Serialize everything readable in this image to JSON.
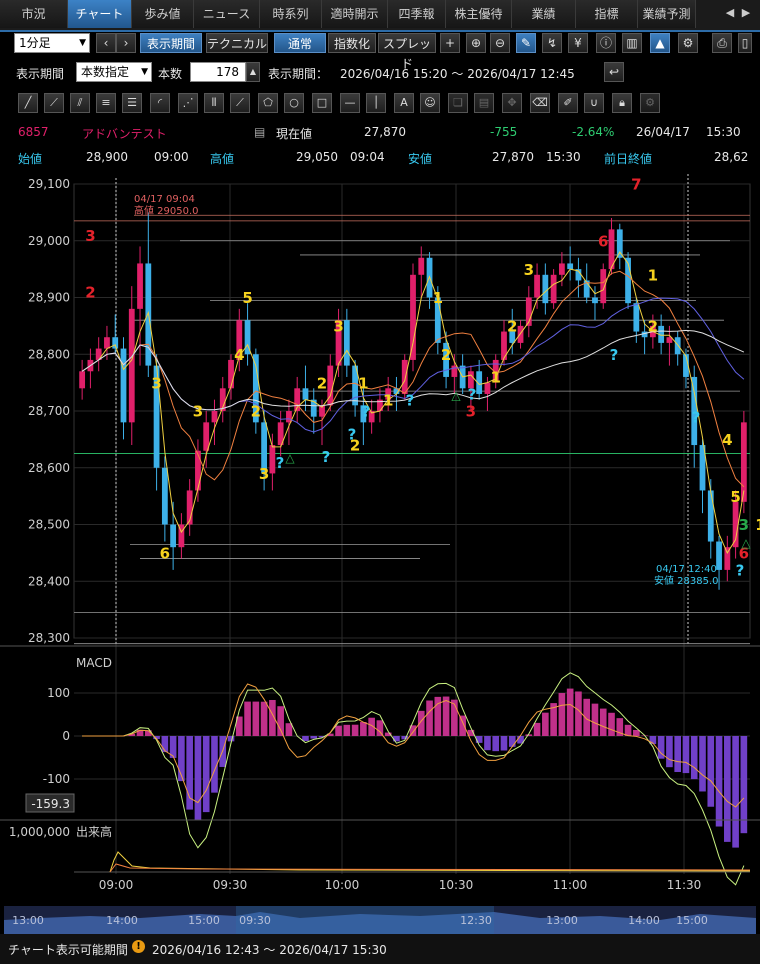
{
  "tabs": [
    "市況",
    "チャート",
    "歩み値",
    "ニュース",
    "時系列",
    "適時開示",
    "四季報",
    "株主優待",
    "業績",
    "指標",
    "業績予測"
  ],
  "tab_active": 1,
  "toolbar": {
    "interval": "1分足",
    "display_period_btn": "表示期間",
    "technical_btn": "テクニカル",
    "normal_btn": "通常",
    "index_btn": "指数化",
    "spread_btn": "スプレッド"
  },
  "period": {
    "label": "表示期間",
    "mode": "本数指定",
    "count_label": "本数",
    "count": "178",
    "range_label": "表示期間：",
    "range": "2026/04/16 15:20 ～ 2026/04/17 12:45"
  },
  "stock": {
    "code": "6857",
    "name": "アドバンテスト",
    "current_label": "現在値",
    "current": "27,870",
    "change": "-755",
    "change_pct": "-2.64%",
    "date": "26/04/17",
    "time": "15:30",
    "open_label": "始値",
    "open": "28,900",
    "open_time": "09:00",
    "high_label": "高値",
    "high": "29,050",
    "high_time": "09:04",
    "low_label": "安値",
    "low": "27,870",
    "low_time": "15:30",
    "prev_label": "前日終値",
    "prev": "28,62"
  },
  "colors": {
    "up": "#e0206a",
    "down": "#3db0e8",
    "accent": "#2d6ca8",
    "label_yellow": "#f6d21e",
    "label_red": "#e4222b",
    "label_cyan": "#38c8ef",
    "label_green": "#27a84a"
  },
  "chart_data": {
    "type": "candlestick",
    "ylim": [
      28300,
      29100
    ],
    "yticks": [
      "29,100",
      "29,000",
      "28,900",
      "28,800",
      "28,700",
      "28,600",
      "28,500",
      "28,400",
      "28,300"
    ],
    "xticks": [
      "09:00",
      "09:30",
      "10:00",
      "10:30",
      "11:00",
      "11:30"
    ],
    "annotations": [
      {
        "text": "04/17 09:04",
        "sub": "高値 29050.0"
      },
      {
        "text": "04/17 12:40",
        "sub": "安値 28385.0"
      }
    ],
    "candles": [
      [
        28740,
        28790,
        28720,
        28770
      ],
      [
        28770,
        28810,
        28740,
        28790
      ],
      [
        28790,
        28830,
        28770,
        28810
      ],
      [
        28810,
        28850,
        28790,
        28830
      ],
      [
        28830,
        28870,
        28800,
        28810
      ],
      [
        28810,
        28830,
        28650,
        28680
      ],
      [
        28680,
        28920,
        28640,
        28880
      ],
      [
        28880,
        28990,
        28780,
        28960
      ],
      [
        28960,
        29050,
        28760,
        28780
      ],
      [
        28780,
        28800,
        28560,
        28600
      ],
      [
        28600,
        28620,
        28470,
        28500
      ],
      [
        28500,
        28540,
        28420,
        28460
      ],
      [
        28460,
        28520,
        28440,
        28500
      ],
      [
        28500,
        28580,
        28480,
        28560
      ],
      [
        28560,
        28650,
        28540,
        28630
      ],
      [
        28630,
        28700,
        28600,
        28680
      ],
      [
        28680,
        28720,
        28640,
        28700
      ],
      [
        28700,
        28760,
        28680,
        28740
      ],
      [
        28740,
        28800,
        28720,
        28790
      ],
      [
        28790,
        28880,
        28770,
        28860
      ],
      [
        28860,
        28890,
        28780,
        28800
      ],
      [
        28800,
        28810,
        28660,
        28680
      ],
      [
        28680,
        28700,
        28560,
        28590
      ],
      [
        28590,
        28660,
        28560,
        28640
      ],
      [
        28640,
        28700,
        28620,
        28680
      ],
      [
        28680,
        28720,
        28640,
        28700
      ],
      [
        28700,
        28760,
        28680,
        28740
      ],
      [
        28740,
        28780,
        28700,
        28720
      ],
      [
        28720,
        28740,
        28660,
        28690
      ],
      [
        28690,
        28720,
        28640,
        28710
      ],
      [
        28710,
        28800,
        28700,
        28780
      ],
      [
        28780,
        28880,
        28760,
        28860
      ],
      [
        28860,
        28880,
        28760,
        28780
      ],
      [
        28780,
        28790,
        28690,
        28710
      ],
      [
        28710,
        28740,
        28640,
        28680
      ],
      [
        28680,
        28720,
        28660,
        28700
      ],
      [
        28700,
        28740,
        28680,
        28720
      ],
      [
        28720,
        28760,
        28700,
        28740
      ],
      [
        28740,
        28760,
        28700,
        28730
      ],
      [
        28730,
        28800,
        28720,
        28790
      ],
      [
        28790,
        28960,
        28770,
        28940
      ],
      [
        28940,
        28990,
        28900,
        28970
      ],
      [
        28970,
        28980,
        28880,
        28900
      ],
      [
        28900,
        28920,
        28800,
        28820
      ],
      [
        28820,
        28840,
        28740,
        28760
      ],
      [
        28760,
        28800,
        28730,
        28780
      ],
      [
        28780,
        28800,
        28730,
        28740
      ],
      [
        28740,
        28780,
        28700,
        28770
      ],
      [
        28770,
        28790,
        28720,
        28730
      ],
      [
        28730,
        28760,
        28700,
        28750
      ],
      [
        28750,
        28800,
        28740,
        28790
      ],
      [
        28790,
        28860,
        28780,
        28840
      ],
      [
        28840,
        28880,
        28800,
        28820
      ],
      [
        28820,
        28860,
        28810,
        28850
      ],
      [
        28850,
        28920,
        28830,
        28900
      ],
      [
        28900,
        28960,
        28880,
        28940
      ],
      [
        28940,
        28960,
        28870,
        28890
      ],
      [
        28890,
        28950,
        28880,
        28940
      ],
      [
        28940,
        28980,
        28920,
        28960
      ],
      [
        28960,
        28990,
        28930,
        28950
      ],
      [
        28950,
        28970,
        28900,
        28930
      ],
      [
        28930,
        28960,
        28890,
        28900
      ],
      [
        28900,
        28920,
        28860,
        28890
      ],
      [
        28890,
        28960,
        28880,
        28950
      ],
      [
        28950,
        29040,
        28940,
        29020
      ],
      [
        29020,
        29030,
        28950,
        28970
      ],
      [
        28970,
        28980,
        28880,
        28890
      ],
      [
        28890,
        28900,
        28820,
        28840
      ],
      [
        28840,
        28860,
        28800,
        28830
      ],
      [
        28830,
        28870,
        28810,
        28850
      ],
      [
        28850,
        28870,
        28800,
        28820
      ],
      [
        28820,
        28850,
        28780,
        28830
      ],
      [
        28830,
        28840,
        28780,
        28800
      ],
      [
        28800,
        28810,
        28740,
        28760
      ],
      [
        28760,
        28780,
        28600,
        28640
      ],
      [
        28640,
        28650,
        28520,
        28560
      ],
      [
        28560,
        28580,
        28440,
        28470
      ],
      [
        28470,
        28480,
        28385,
        28420
      ],
      [
        28420,
        28480,
        28400,
        28460
      ],
      [
        28460,
        28560,
        28440,
        28540
      ],
      [
        28540,
        28700,
        28520,
        28680
      ]
    ],
    "macd_yticks": [
      "100",
      "0",
      "-100"
    ],
    "macd_value": "-159.3",
    "macd_label": "MACD",
    "volume_label": "出来高",
    "volume_ytick": "1,000,000",
    "overview_ticks": [
      "13:00",
      "14:00",
      "15:00",
      "09:30",
      "12:30",
      "13:00",
      "14:00",
      "15:00"
    ]
  },
  "markers": [
    {
      "t": "3",
      "c": "red",
      "i": 1,
      "p": 29000
    },
    {
      "t": "2",
      "c": "red",
      "i": 1,
      "p": 28900
    },
    {
      "t": "3",
      "c": "yellow",
      "i": 9,
      "p": 28740
    },
    {
      "t": "6",
      "c": "yellow",
      "i": 10,
      "p": 28440
    },
    {
      "t": "3",
      "c": "yellow",
      "i": 14,
      "p": 28690
    },
    {
      "t": "5",
      "c": "yellow",
      "i": 20,
      "p": 28890
    },
    {
      "t": "4",
      "c": "yellow",
      "i": 19,
      "p": 28790
    },
    {
      "t": "2",
      "c": "yellow",
      "i": 21,
      "p": 28690
    },
    {
      "t": "3",
      "c": "yellow",
      "i": 22,
      "p": 28580
    },
    {
      "t": "2",
      "c": "yellow",
      "i": 29,
      "p": 28740
    },
    {
      "t": "3",
      "c": "yellow",
      "i": 31,
      "p": 28840
    },
    {
      "t": "1",
      "c": "yellow",
      "i": 34,
      "p": 28740
    },
    {
      "t": "2",
      "c": "yellow",
      "i": 33,
      "p": 28630
    },
    {
      "t": "1",
      "c": "yellow",
      "i": 37,
      "p": 28710
    },
    {
      "t": "1",
      "c": "yellow",
      "i": 43,
      "p": 28890
    },
    {
      "t": "2",
      "c": "yellow",
      "i": 44,
      "p": 28790
    },
    {
      "t": "1",
      "c": "yellow",
      "i": 50,
      "p": 28750
    },
    {
      "t": "2",
      "c": "yellow",
      "i": 52,
      "p": 28840
    },
    {
      "t": "3",
      "c": "yellow",
      "i": 54,
      "p": 28940
    },
    {
      "t": "6",
      "c": "red",
      "i": 63,
      "p": 28990
    },
    {
      "t": "7",
      "c": "red",
      "i": 67,
      "p": 29090
    },
    {
      "t": "1",
      "c": "yellow",
      "i": 69,
      "p": 28930
    },
    {
      "t": "2",
      "c": "yellow",
      "i": 69,
      "p": 28840
    },
    {
      "t": "3",
      "c": "red",
      "i": 47,
      "p": 28690
    },
    {
      "t": "4",
      "c": "yellow",
      "i": 78,
      "p": 28640
    },
    {
      "t": "5",
      "c": "yellow",
      "i": 79,
      "p": 28540
    },
    {
      "t": "3",
      "c": "green",
      "i": 80,
      "p": 28490
    },
    {
      "t": "6",
      "c": "red",
      "i": 80,
      "p": 28440
    },
    {
      "t": "1",
      "c": "yellow",
      "i": 82,
      "p": 28490
    },
    {
      "t": "3",
      "c": "yellow",
      "i": 83,
      "p": 28690
    },
    {
      "t": "2",
      "c": "green",
      "i": 83,
      "p": 28590
    }
  ]
}
